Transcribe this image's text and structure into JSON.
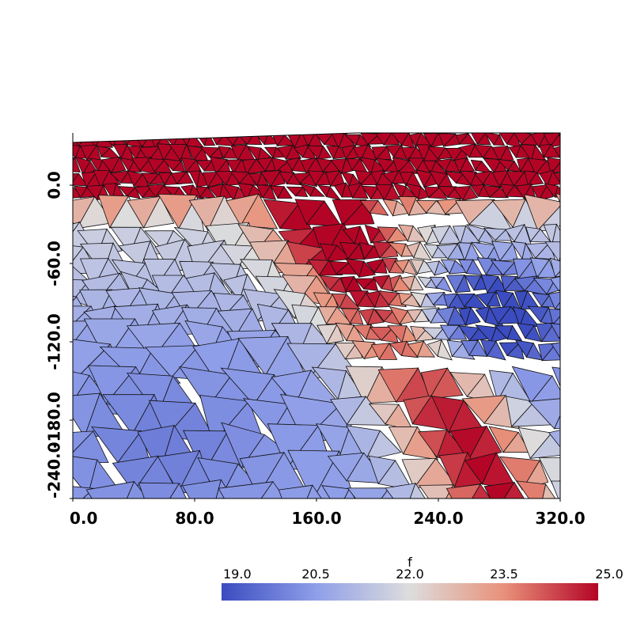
{
  "chart_data": {
    "type": "heatmap",
    "title": "",
    "xlabel": "",
    "ylabel": "",
    "xlim": [
      0,
      320
    ],
    "ylim": [
      -240,
      40
    ],
    "x_ticks": [
      "0.0",
      "80.0",
      "160.0",
      "240.0",
      "320.0"
    ],
    "y_ticks": [
      "0.0",
      "-60.0",
      "-120.0",
      "-180.0",
      "-240.0"
    ],
    "mesh": "triangulated",
    "field": {
      "name": "f",
      "range": [
        19.0,
        25.0
      ],
      "colormap": "cool-to-warm",
      "colormap_colors": [
        "#3b4cc0",
        "#dddddd",
        "#b40426"
      ],
      "colorbar_ticks": [
        "19.0",
        "20.5",
        "22.0",
        "23.5",
        "25.0"
      ],
      "colorbar_position": "bottom-right"
    },
    "regions": [
      {
        "feature": "top band",
        "x_range": [
          0,
          320
        ],
        "y_range": [
          -5,
          40
        ],
        "f": 25.0
      },
      {
        "feature": "diagonal high ridge",
        "from": [
          175,
          -40
        ],
        "to": [
          280,
          -240
        ],
        "f": 25.0
      },
      {
        "feature": "low pocket",
        "center": [
          255,
          -95
        ],
        "f": 19.0
      },
      {
        "feature": "left/bottom plateau",
        "x_range": [
          0,
          160
        ],
        "y_range": [
          -240,
          -80
        ],
        "f": 20.5
      }
    ]
  }
}
